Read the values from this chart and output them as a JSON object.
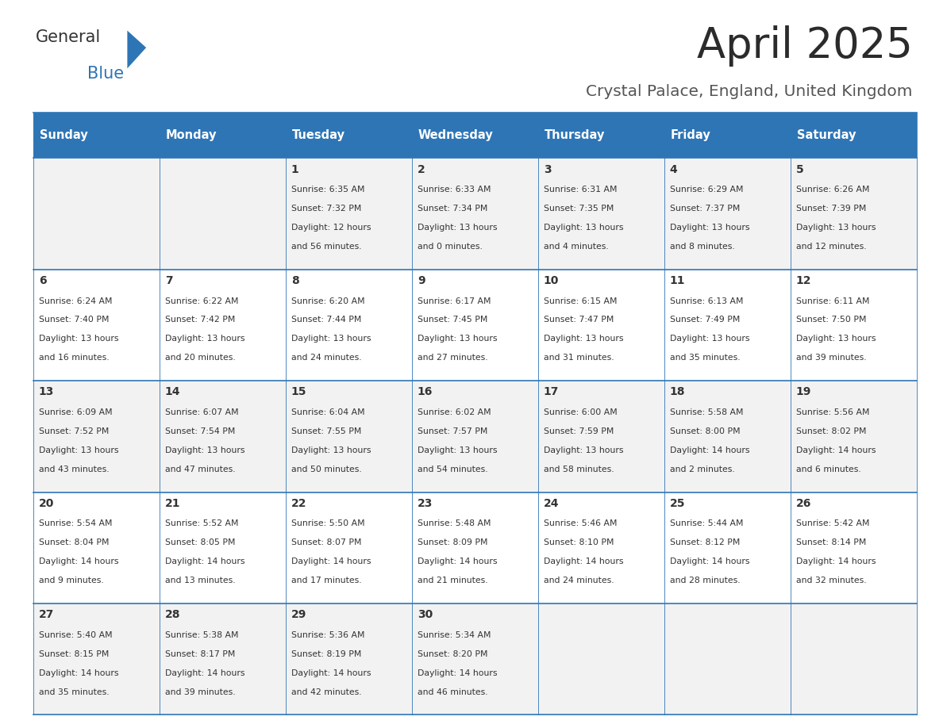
{
  "title": "April 2025",
  "subtitle": "Crystal Palace, England, United Kingdom",
  "header_color": "#2E75B6",
  "header_text_color": "#FFFFFF",
  "background_color": "#FFFFFF",
  "cell_bg_light": "#F2F2F2",
  "cell_bg_white": "#FFFFFF",
  "border_color": "#2E75B6",
  "text_color": "#333333",
  "subtitle_color": "#555555",
  "days_of_week": [
    "Sunday",
    "Monday",
    "Tuesday",
    "Wednesday",
    "Thursday",
    "Friday",
    "Saturday"
  ],
  "logo_general_color": "#333333",
  "logo_blue_color": "#2E75B6",
  "logo_triangle_color": "#2E75B6",
  "weeks": [
    [
      {
        "day": "",
        "sunrise": "",
        "sunset": "",
        "daylight": ""
      },
      {
        "day": "",
        "sunrise": "",
        "sunset": "",
        "daylight": ""
      },
      {
        "day": "1",
        "sunrise": "Sunrise: 6:35 AM",
        "sunset": "Sunset: 7:32 PM",
        "daylight": "Daylight: 12 hours\nand 56 minutes."
      },
      {
        "day": "2",
        "sunrise": "Sunrise: 6:33 AM",
        "sunset": "Sunset: 7:34 PM",
        "daylight": "Daylight: 13 hours\nand 0 minutes."
      },
      {
        "day": "3",
        "sunrise": "Sunrise: 6:31 AM",
        "sunset": "Sunset: 7:35 PM",
        "daylight": "Daylight: 13 hours\nand 4 minutes."
      },
      {
        "day": "4",
        "sunrise": "Sunrise: 6:29 AM",
        "sunset": "Sunset: 7:37 PM",
        "daylight": "Daylight: 13 hours\nand 8 minutes."
      },
      {
        "day": "5",
        "sunrise": "Sunrise: 6:26 AM",
        "sunset": "Sunset: 7:39 PM",
        "daylight": "Daylight: 13 hours\nand 12 minutes."
      }
    ],
    [
      {
        "day": "6",
        "sunrise": "Sunrise: 6:24 AM",
        "sunset": "Sunset: 7:40 PM",
        "daylight": "Daylight: 13 hours\nand 16 minutes."
      },
      {
        "day": "7",
        "sunrise": "Sunrise: 6:22 AM",
        "sunset": "Sunset: 7:42 PM",
        "daylight": "Daylight: 13 hours\nand 20 minutes."
      },
      {
        "day": "8",
        "sunrise": "Sunrise: 6:20 AM",
        "sunset": "Sunset: 7:44 PM",
        "daylight": "Daylight: 13 hours\nand 24 minutes."
      },
      {
        "day": "9",
        "sunrise": "Sunrise: 6:17 AM",
        "sunset": "Sunset: 7:45 PM",
        "daylight": "Daylight: 13 hours\nand 27 minutes."
      },
      {
        "day": "10",
        "sunrise": "Sunrise: 6:15 AM",
        "sunset": "Sunset: 7:47 PM",
        "daylight": "Daylight: 13 hours\nand 31 minutes."
      },
      {
        "day": "11",
        "sunrise": "Sunrise: 6:13 AM",
        "sunset": "Sunset: 7:49 PM",
        "daylight": "Daylight: 13 hours\nand 35 minutes."
      },
      {
        "day": "12",
        "sunrise": "Sunrise: 6:11 AM",
        "sunset": "Sunset: 7:50 PM",
        "daylight": "Daylight: 13 hours\nand 39 minutes."
      }
    ],
    [
      {
        "day": "13",
        "sunrise": "Sunrise: 6:09 AM",
        "sunset": "Sunset: 7:52 PM",
        "daylight": "Daylight: 13 hours\nand 43 minutes."
      },
      {
        "day": "14",
        "sunrise": "Sunrise: 6:07 AM",
        "sunset": "Sunset: 7:54 PM",
        "daylight": "Daylight: 13 hours\nand 47 minutes."
      },
      {
        "day": "15",
        "sunrise": "Sunrise: 6:04 AM",
        "sunset": "Sunset: 7:55 PM",
        "daylight": "Daylight: 13 hours\nand 50 minutes."
      },
      {
        "day": "16",
        "sunrise": "Sunrise: 6:02 AM",
        "sunset": "Sunset: 7:57 PM",
        "daylight": "Daylight: 13 hours\nand 54 minutes."
      },
      {
        "day": "17",
        "sunrise": "Sunrise: 6:00 AM",
        "sunset": "Sunset: 7:59 PM",
        "daylight": "Daylight: 13 hours\nand 58 minutes."
      },
      {
        "day": "18",
        "sunrise": "Sunrise: 5:58 AM",
        "sunset": "Sunset: 8:00 PM",
        "daylight": "Daylight: 14 hours\nand 2 minutes."
      },
      {
        "day": "19",
        "sunrise": "Sunrise: 5:56 AM",
        "sunset": "Sunset: 8:02 PM",
        "daylight": "Daylight: 14 hours\nand 6 minutes."
      }
    ],
    [
      {
        "day": "20",
        "sunrise": "Sunrise: 5:54 AM",
        "sunset": "Sunset: 8:04 PM",
        "daylight": "Daylight: 14 hours\nand 9 minutes."
      },
      {
        "day": "21",
        "sunrise": "Sunrise: 5:52 AM",
        "sunset": "Sunset: 8:05 PM",
        "daylight": "Daylight: 14 hours\nand 13 minutes."
      },
      {
        "day": "22",
        "sunrise": "Sunrise: 5:50 AM",
        "sunset": "Sunset: 8:07 PM",
        "daylight": "Daylight: 14 hours\nand 17 minutes."
      },
      {
        "day": "23",
        "sunrise": "Sunrise: 5:48 AM",
        "sunset": "Sunset: 8:09 PM",
        "daylight": "Daylight: 14 hours\nand 21 minutes."
      },
      {
        "day": "24",
        "sunrise": "Sunrise: 5:46 AM",
        "sunset": "Sunset: 8:10 PM",
        "daylight": "Daylight: 14 hours\nand 24 minutes."
      },
      {
        "day": "25",
        "sunrise": "Sunrise: 5:44 AM",
        "sunset": "Sunset: 8:12 PM",
        "daylight": "Daylight: 14 hours\nand 28 minutes."
      },
      {
        "day": "26",
        "sunrise": "Sunrise: 5:42 AM",
        "sunset": "Sunset: 8:14 PM",
        "daylight": "Daylight: 14 hours\nand 32 minutes."
      }
    ],
    [
      {
        "day": "27",
        "sunrise": "Sunrise: 5:40 AM",
        "sunset": "Sunset: 8:15 PM",
        "daylight": "Daylight: 14 hours\nand 35 minutes."
      },
      {
        "day": "28",
        "sunrise": "Sunrise: 5:38 AM",
        "sunset": "Sunset: 8:17 PM",
        "daylight": "Daylight: 14 hours\nand 39 minutes."
      },
      {
        "day": "29",
        "sunrise": "Sunrise: 5:36 AM",
        "sunset": "Sunset: 8:19 PM",
        "daylight": "Daylight: 14 hours\nand 42 minutes."
      },
      {
        "day": "30",
        "sunrise": "Sunrise: 5:34 AM",
        "sunset": "Sunset: 8:20 PM",
        "daylight": "Daylight: 14 hours\nand 46 minutes."
      },
      {
        "day": "",
        "sunrise": "",
        "sunset": "",
        "daylight": ""
      },
      {
        "day": "",
        "sunrise": "",
        "sunset": "",
        "daylight": ""
      },
      {
        "day": "",
        "sunrise": "",
        "sunset": "",
        "daylight": ""
      }
    ]
  ]
}
